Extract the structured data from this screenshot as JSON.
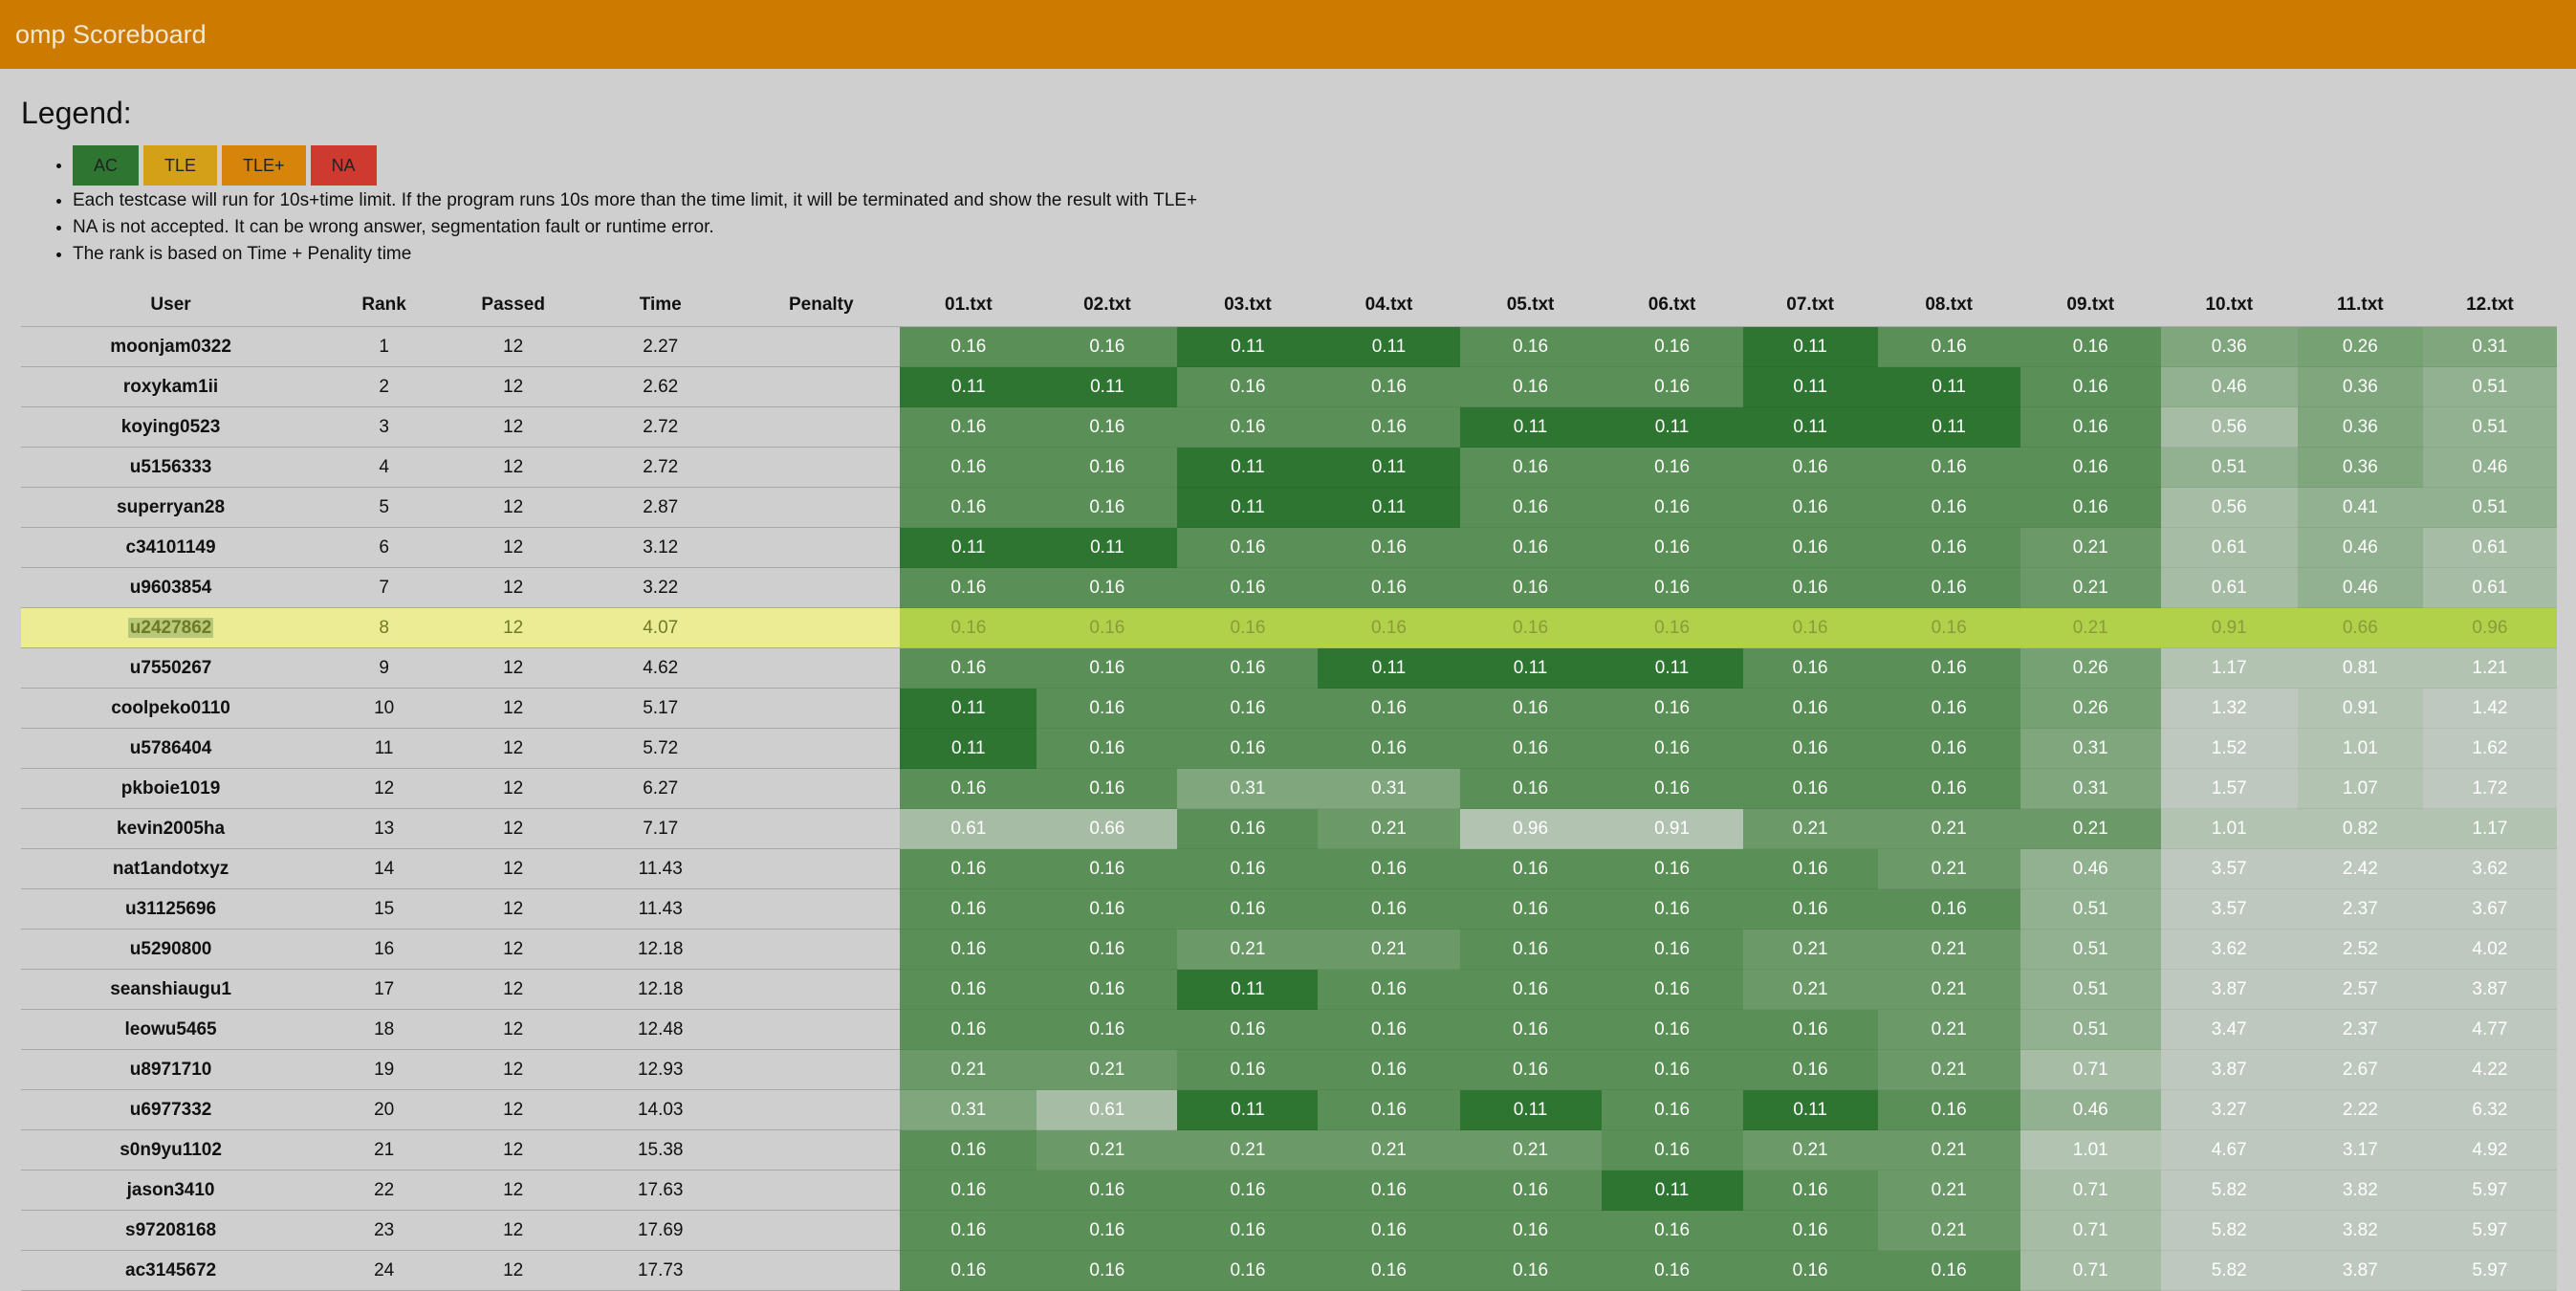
{
  "app": {
    "title": "omp Scoreboard"
  },
  "legend": {
    "title": "Legend:",
    "badges": [
      {
        "label": "AC",
        "color": "#2e7531"
      },
      {
        "label": "TLE",
        "color": "#d4a017"
      },
      {
        "label": "TLE+",
        "color": "#d6840a"
      },
      {
        "label": "NA",
        "color": "#cf3a30"
      }
    ],
    "notes": [
      "Each testcase will run for 10s+time limit. If the program runs 10s more than the time limit, it will be terminated and show the result with TLE+",
      "NA is not accepted. It can be wrong answer, segmentation fault or runtime error.",
      "The rank is based on Time + Penality time"
    ]
  },
  "table": {
    "headers": [
      "User",
      "Rank",
      "Passed",
      "Time",
      "Penalty",
      "01.txt",
      "02.txt",
      "03.txt",
      "04.txt",
      "05.txt",
      "06.txt",
      "07.txt",
      "08.txt",
      "09.txt",
      "10.txt",
      "11.txt",
      "12.txt"
    ],
    "highlighted_user": "u2427862",
    "rows": [
      {
        "user": "moonjam0322",
        "rank": "1",
        "passed": "12",
        "time": "2.27",
        "penalty": "",
        "cases": [
          "0.16",
          "0.16",
          "0.11",
          "0.11",
          "0.16",
          "0.16",
          "0.11",
          "0.16",
          "0.16",
          "0.36",
          "0.26",
          "0.31"
        ]
      },
      {
        "user": "roxykam1ii",
        "rank": "2",
        "passed": "12",
        "time": "2.62",
        "penalty": "",
        "cases": [
          "0.11",
          "0.11",
          "0.16",
          "0.16",
          "0.16",
          "0.16",
          "0.11",
          "0.11",
          "0.16",
          "0.46",
          "0.36",
          "0.51"
        ]
      },
      {
        "user": "koying0523",
        "rank": "3",
        "passed": "12",
        "time": "2.72",
        "penalty": "",
        "cases": [
          "0.16",
          "0.16",
          "0.16",
          "0.16",
          "0.11",
          "0.11",
          "0.11",
          "0.11",
          "0.16",
          "0.56",
          "0.36",
          "0.51"
        ]
      },
      {
        "user": "u5156333",
        "rank": "4",
        "passed": "12",
        "time": "2.72",
        "penalty": "",
        "cases": [
          "0.16",
          "0.16",
          "0.11",
          "0.11",
          "0.16",
          "0.16",
          "0.16",
          "0.16",
          "0.16",
          "0.51",
          "0.36",
          "0.46"
        ]
      },
      {
        "user": "superryan28",
        "rank": "5",
        "passed": "12",
        "time": "2.87",
        "penalty": "",
        "cases": [
          "0.16",
          "0.16",
          "0.11",
          "0.11",
          "0.16",
          "0.16",
          "0.16",
          "0.16",
          "0.16",
          "0.56",
          "0.41",
          "0.51"
        ]
      },
      {
        "user": "c34101149",
        "rank": "6",
        "passed": "12",
        "time": "3.12",
        "penalty": "",
        "cases": [
          "0.11",
          "0.11",
          "0.16",
          "0.16",
          "0.16",
          "0.16",
          "0.16",
          "0.16",
          "0.21",
          "0.61",
          "0.46",
          "0.61"
        ]
      },
      {
        "user": "u9603854",
        "rank": "7",
        "passed": "12",
        "time": "3.22",
        "penalty": "",
        "cases": [
          "0.16",
          "0.16",
          "0.16",
          "0.16",
          "0.16",
          "0.16",
          "0.16",
          "0.16",
          "0.21",
          "0.61",
          "0.46",
          "0.61"
        ]
      },
      {
        "user": "u2427862",
        "rank": "8",
        "passed": "12",
        "time": "4.07",
        "penalty": "",
        "cases": [
          "0.16",
          "0.16",
          "0.16",
          "0.16",
          "0.16",
          "0.16",
          "0.16",
          "0.16",
          "0.21",
          "0.91",
          "0.66",
          "0.96"
        ]
      },
      {
        "user": "u7550267",
        "rank": "9",
        "passed": "12",
        "time": "4.62",
        "penalty": "",
        "cases": [
          "0.16",
          "0.16",
          "0.16",
          "0.11",
          "0.11",
          "0.11",
          "0.16",
          "0.16",
          "0.26",
          "1.17",
          "0.81",
          "1.21"
        ]
      },
      {
        "user": "coolpeko0110",
        "rank": "10",
        "passed": "12",
        "time": "5.17",
        "penalty": "",
        "cases": [
          "0.11",
          "0.16",
          "0.16",
          "0.16",
          "0.16",
          "0.16",
          "0.16",
          "0.16",
          "0.26",
          "1.32",
          "0.91",
          "1.42"
        ]
      },
      {
        "user": "u5786404",
        "rank": "11",
        "passed": "12",
        "time": "5.72",
        "penalty": "",
        "cases": [
          "0.11",
          "0.16",
          "0.16",
          "0.16",
          "0.16",
          "0.16",
          "0.16",
          "0.16",
          "0.31",
          "1.52",
          "1.01",
          "1.62"
        ]
      },
      {
        "user": "pkboie1019",
        "rank": "12",
        "passed": "12",
        "time": "6.27",
        "penalty": "",
        "cases": [
          "0.16",
          "0.16",
          "0.31",
          "0.31",
          "0.16",
          "0.16",
          "0.16",
          "0.16",
          "0.31",
          "1.57",
          "1.07",
          "1.72"
        ]
      },
      {
        "user": "kevin2005ha",
        "rank": "13",
        "passed": "12",
        "time": "7.17",
        "penalty": "",
        "cases": [
          "0.61",
          "0.66",
          "0.16",
          "0.21",
          "0.96",
          "0.91",
          "0.21",
          "0.21",
          "0.21",
          "1.01",
          "0.82",
          "1.17"
        ]
      },
      {
        "user": "nat1andotxyz",
        "rank": "14",
        "passed": "12",
        "time": "11.43",
        "penalty": "",
        "cases": [
          "0.16",
          "0.16",
          "0.16",
          "0.16",
          "0.16",
          "0.16",
          "0.16",
          "0.21",
          "0.46",
          "3.57",
          "2.42",
          "3.62"
        ]
      },
      {
        "user": "u31125696",
        "rank": "15",
        "passed": "12",
        "time": "11.43",
        "penalty": "",
        "cases": [
          "0.16",
          "0.16",
          "0.16",
          "0.16",
          "0.16",
          "0.16",
          "0.16",
          "0.16",
          "0.51",
          "3.57",
          "2.37",
          "3.67"
        ]
      },
      {
        "user": "u5290800",
        "rank": "16",
        "passed": "12",
        "time": "12.18",
        "penalty": "",
        "cases": [
          "0.16",
          "0.16",
          "0.21",
          "0.21",
          "0.16",
          "0.16",
          "0.21",
          "0.21",
          "0.51",
          "3.62",
          "2.52",
          "4.02"
        ]
      },
      {
        "user": "seanshiaugu1",
        "rank": "17",
        "passed": "12",
        "time": "12.18",
        "penalty": "",
        "cases": [
          "0.16",
          "0.16",
          "0.11",
          "0.16",
          "0.16",
          "0.16",
          "0.21",
          "0.21",
          "0.51",
          "3.87",
          "2.57",
          "3.87"
        ]
      },
      {
        "user": "leowu5465",
        "rank": "18",
        "passed": "12",
        "time": "12.48",
        "penalty": "",
        "cases": [
          "0.16",
          "0.16",
          "0.16",
          "0.16",
          "0.16",
          "0.16",
          "0.16",
          "0.21",
          "0.51",
          "3.47",
          "2.37",
          "4.77"
        ]
      },
      {
        "user": "u8971710",
        "rank": "19",
        "passed": "12",
        "time": "12.93",
        "penalty": "",
        "cases": [
          "0.21",
          "0.21",
          "0.16",
          "0.16",
          "0.16",
          "0.16",
          "0.16",
          "0.21",
          "0.71",
          "3.87",
          "2.67",
          "4.22"
        ]
      },
      {
        "user": "u6977332",
        "rank": "20",
        "passed": "12",
        "time": "14.03",
        "penalty": "",
        "cases": [
          "0.31",
          "0.61",
          "0.11",
          "0.16",
          "0.11",
          "0.16",
          "0.11",
          "0.16",
          "0.46",
          "3.27",
          "2.22",
          "6.32"
        ]
      },
      {
        "user": "s0n9yu1102",
        "rank": "21",
        "passed": "12",
        "time": "15.38",
        "penalty": "",
        "cases": [
          "0.16",
          "0.21",
          "0.21",
          "0.21",
          "0.21",
          "0.16",
          "0.21",
          "0.21",
          "1.01",
          "4.67",
          "3.17",
          "4.92"
        ]
      },
      {
        "user": "jason3410",
        "rank": "22",
        "passed": "12",
        "time": "17.63",
        "penalty": "",
        "cases": [
          "0.16",
          "0.16",
          "0.16",
          "0.16",
          "0.16",
          "0.11",
          "0.16",
          "0.21",
          "0.71",
          "5.82",
          "3.82",
          "5.97"
        ]
      },
      {
        "user": "s97208168",
        "rank": "23",
        "passed": "12",
        "time": "17.69",
        "penalty": "",
        "cases": [
          "0.16",
          "0.16",
          "0.16",
          "0.16",
          "0.16",
          "0.16",
          "0.16",
          "0.21",
          "0.71",
          "5.82",
          "3.82",
          "5.97"
        ]
      },
      {
        "user": "ac3145672",
        "rank": "24",
        "passed": "12",
        "time": "17.73",
        "penalty": "",
        "cases": [
          "0.16",
          "0.16",
          "0.16",
          "0.16",
          "0.16",
          "0.16",
          "0.16",
          "0.16",
          "0.71",
          "5.82",
          "3.87",
          "5.97"
        ]
      }
    ]
  }
}
